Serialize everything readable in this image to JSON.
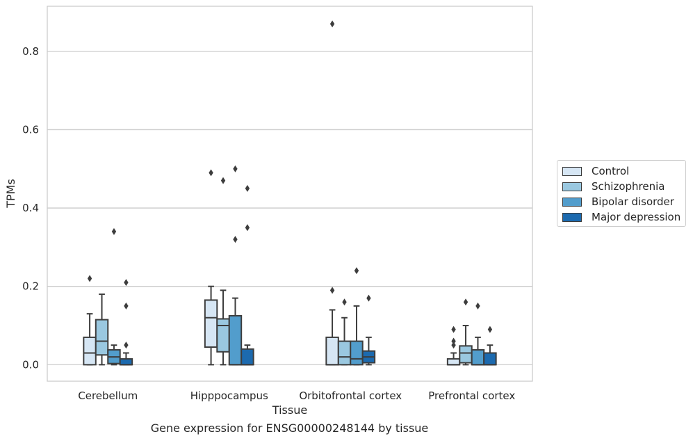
{
  "caption": "Gene expression for ENSG00000248144 by tissue",
  "chart_data": {
    "type": "box",
    "xlabel": "Tissue",
    "ylabel": "TPMs",
    "ylim": [
      -0.042,
      0.915
    ],
    "yticks": [
      "0.0",
      "0.2",
      "0.4",
      "0.6",
      "0.8"
    ],
    "grid": "horizontal",
    "legend_position": "right",
    "categories": [
      "Cerebellum",
      "Hipppocampus",
      "Orbitofrontal cortex",
      "Prefrontal cortex"
    ],
    "series": [
      {
        "name": "Control",
        "color": "#d6e6f4",
        "boxes": [
          {
            "whislo": 0.0,
            "q1": 0.0,
            "med": 0.03,
            "q3": 0.07,
            "whishi": 0.13,
            "fliers": [
              0.22
            ]
          },
          {
            "whislo": 0.0,
            "q1": 0.045,
            "med": 0.12,
            "q3": 0.165,
            "whishi": 0.2,
            "fliers": [
              0.49
            ]
          },
          {
            "whislo": 0.0,
            "q1": 0.0,
            "med": 0.0,
            "q3": 0.07,
            "whishi": 0.14,
            "fliers": [
              0.19,
              0.87
            ]
          },
          {
            "whislo": 0.0,
            "q1": 0.0,
            "med": 0.0,
            "q3": 0.015,
            "whishi": 0.03,
            "fliers": [
              0.05,
              0.06,
              0.09
            ]
          }
        ]
      },
      {
        "name": "Schizophrenia",
        "color": "#9ac8e0",
        "boxes": [
          {
            "whislo": 0.0,
            "q1": 0.025,
            "med": 0.06,
            "q3": 0.115,
            "whishi": 0.18,
            "fliers": []
          },
          {
            "whislo": 0.0,
            "q1": 0.033,
            "med": 0.1,
            "q3": 0.117,
            "whishi": 0.19,
            "fliers": [
              0.47
            ]
          },
          {
            "whislo": 0.0,
            "q1": 0.0,
            "med": 0.02,
            "q3": 0.06,
            "whishi": 0.12,
            "fliers": [
              0.16
            ]
          },
          {
            "whislo": 0.0,
            "q1": 0.005,
            "med": 0.03,
            "q3": 0.048,
            "whishi": 0.1,
            "fliers": [
              0.16
            ]
          }
        ]
      },
      {
        "name": "Bipolar disorder",
        "color": "#529dcc",
        "boxes": [
          {
            "whislo": 0.0,
            "q1": 0.003,
            "med": 0.02,
            "q3": 0.038,
            "whishi": 0.05,
            "fliers": [
              0.34
            ]
          },
          {
            "whislo": 0.0,
            "q1": 0.0,
            "med": 0.0,
            "q3": 0.125,
            "whishi": 0.17,
            "fliers": [
              0.5,
              0.32
            ]
          },
          {
            "whislo": 0.0,
            "q1": 0.0,
            "med": 0.015,
            "q3": 0.06,
            "whishi": 0.15,
            "fliers": [
              0.24
            ]
          },
          {
            "whislo": 0.0,
            "q1": 0.0,
            "med": 0.0,
            "q3": 0.038,
            "whishi": 0.07,
            "fliers": [
              0.15
            ]
          }
        ]
      },
      {
        "name": "Major depression",
        "color": "#1c6aaf",
        "boxes": [
          {
            "whislo": 0.0,
            "q1": 0.0,
            "med": 0.0,
            "q3": 0.015,
            "whishi": 0.03,
            "fliers": [
              0.21,
              0.15,
              0.05
            ]
          },
          {
            "whislo": 0.0,
            "q1": 0.0,
            "med": 0.0,
            "q3": 0.04,
            "whishi": 0.05,
            "fliers": [
              0.45,
              0.35
            ]
          },
          {
            "whislo": 0.0,
            "q1": 0.005,
            "med": 0.02,
            "q3": 0.035,
            "whishi": 0.07,
            "fliers": [
              0.17
            ]
          },
          {
            "whislo": 0.0,
            "q1": 0.0,
            "med": 0.0,
            "q3": 0.03,
            "whishi": 0.05,
            "fliers": [
              0.09
            ]
          }
        ]
      }
    ]
  }
}
